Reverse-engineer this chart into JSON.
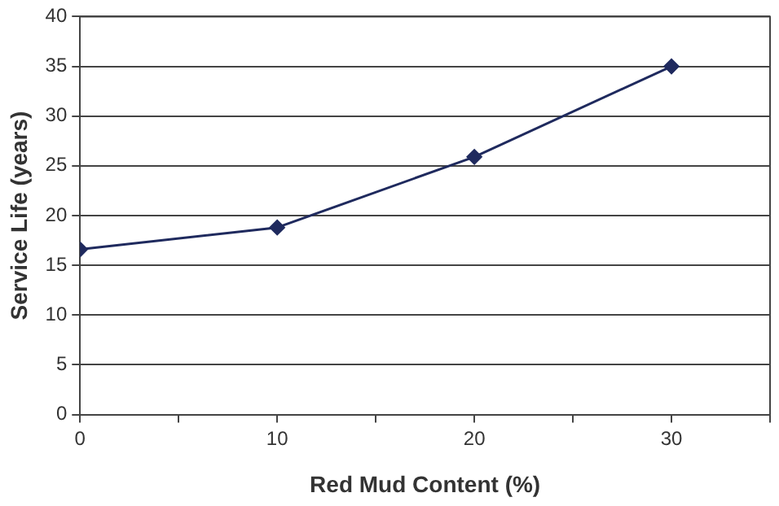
{
  "chart_data": {
    "type": "line",
    "xlabel": "Red Mud Content (%)",
    "ylabel": "Service Life (years)",
    "x": [
      0,
      10,
      20,
      30
    ],
    "series": [
      {
        "color": "#1f2a5e",
        "values": [
          16.6,
          18.8,
          25.9,
          35.0
        ]
      }
    ],
    "xlim": [
      0,
      35
    ],
    "xticks": [
      0,
      {
        "value": 5,
        "label": null
      },
      10,
      {
        "value": 15,
        "label": null
      },
      20,
      {
        "value": 25,
        "label": null
      },
      30,
      {
        "value": 35,
        "label": null
      }
    ],
    "ylim": [
      0,
      40
    ],
    "yticks": [
      0,
      5,
      10,
      15,
      20,
      25,
      30,
      35,
      40
    ],
    "grid": "y",
    "legend": false,
    "marker": "diamond",
    "line_style": "solid"
  }
}
